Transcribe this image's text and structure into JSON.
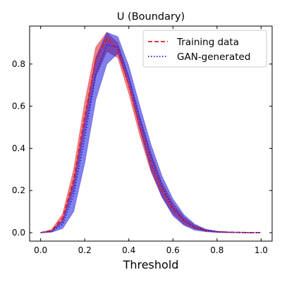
{
  "chart_data": {
    "type": "line",
    "title": "U (Boundary)",
    "xlabel": "Threshold",
    "ylabel": "",
    "xlim": [
      -0.05,
      1.05
    ],
    "ylim": [
      -0.04,
      0.98
    ],
    "xticks": [
      "0.0",
      "0.2",
      "0.4",
      "0.6",
      "0.8",
      "1.0"
    ],
    "yticks": [
      "0.0",
      "0.2",
      "0.4",
      "0.6",
      "0.8"
    ],
    "xtick_values": [
      0.0,
      0.2,
      0.4,
      0.6,
      0.8,
      1.0
    ],
    "ytick_values": [
      0.0,
      0.2,
      0.4,
      0.6,
      0.8
    ],
    "legend_position": "top-right",
    "grid": false,
    "x": [
      0.0,
      0.05,
      0.1,
      0.15,
      0.2,
      0.25,
      0.3,
      0.35,
      0.4,
      0.45,
      0.5,
      0.55,
      0.6,
      0.65,
      0.7,
      0.75,
      0.8,
      0.85,
      0.9,
      0.95,
      1.0
    ],
    "series": [
      {
        "name": "Training data",
        "color": "#e41a1c",
        "line_style": "dashed",
        "values": [
          0.0,
          0.01,
          0.07,
          0.25,
          0.55,
          0.82,
          0.92,
          0.87,
          0.7,
          0.5,
          0.33,
          0.2,
          0.11,
          0.055,
          0.025,
          0.01,
          0.004,
          0.002,
          0.001,
          0.0,
          0.0
        ],
        "band_upper": [
          0.0,
          0.015,
          0.09,
          0.3,
          0.62,
          0.88,
          0.95,
          0.9,
          0.74,
          0.55,
          0.38,
          0.24,
          0.14,
          0.075,
          0.035,
          0.015,
          0.006,
          0.003,
          0.001,
          0.0,
          0.0
        ],
        "band_lower": [
          0.0,
          0.005,
          0.05,
          0.2,
          0.48,
          0.74,
          0.86,
          0.83,
          0.66,
          0.46,
          0.29,
          0.17,
          0.09,
          0.04,
          0.018,
          0.007,
          0.003,
          0.001,
          0.0,
          0.0,
          0.0
        ]
      },
      {
        "name": "GAN-generated",
        "color": "#1a1adc",
        "line_style": "dotted",
        "values": [
          0.0,
          0.005,
          0.04,
          0.18,
          0.45,
          0.75,
          0.89,
          0.88,
          0.74,
          0.54,
          0.36,
          0.22,
          0.12,
          0.06,
          0.025,
          0.01,
          0.004,
          0.002,
          0.001,
          0.0,
          0.0
        ],
        "band_upper": [
          0.0,
          0.008,
          0.06,
          0.24,
          0.54,
          0.83,
          0.95,
          0.93,
          0.79,
          0.6,
          0.42,
          0.27,
          0.16,
          0.085,
          0.04,
          0.016,
          0.007,
          0.003,
          0.001,
          0.0,
          0.0
        ],
        "band_lower": [
          0.0,
          0.002,
          0.02,
          0.1,
          0.33,
          0.63,
          0.8,
          0.85,
          0.7,
          0.49,
          0.3,
          0.17,
          0.08,
          0.035,
          0.012,
          0.004,
          0.001,
          0.0,
          0.0,
          0.0,
          0.0
        ]
      }
    ]
  }
}
